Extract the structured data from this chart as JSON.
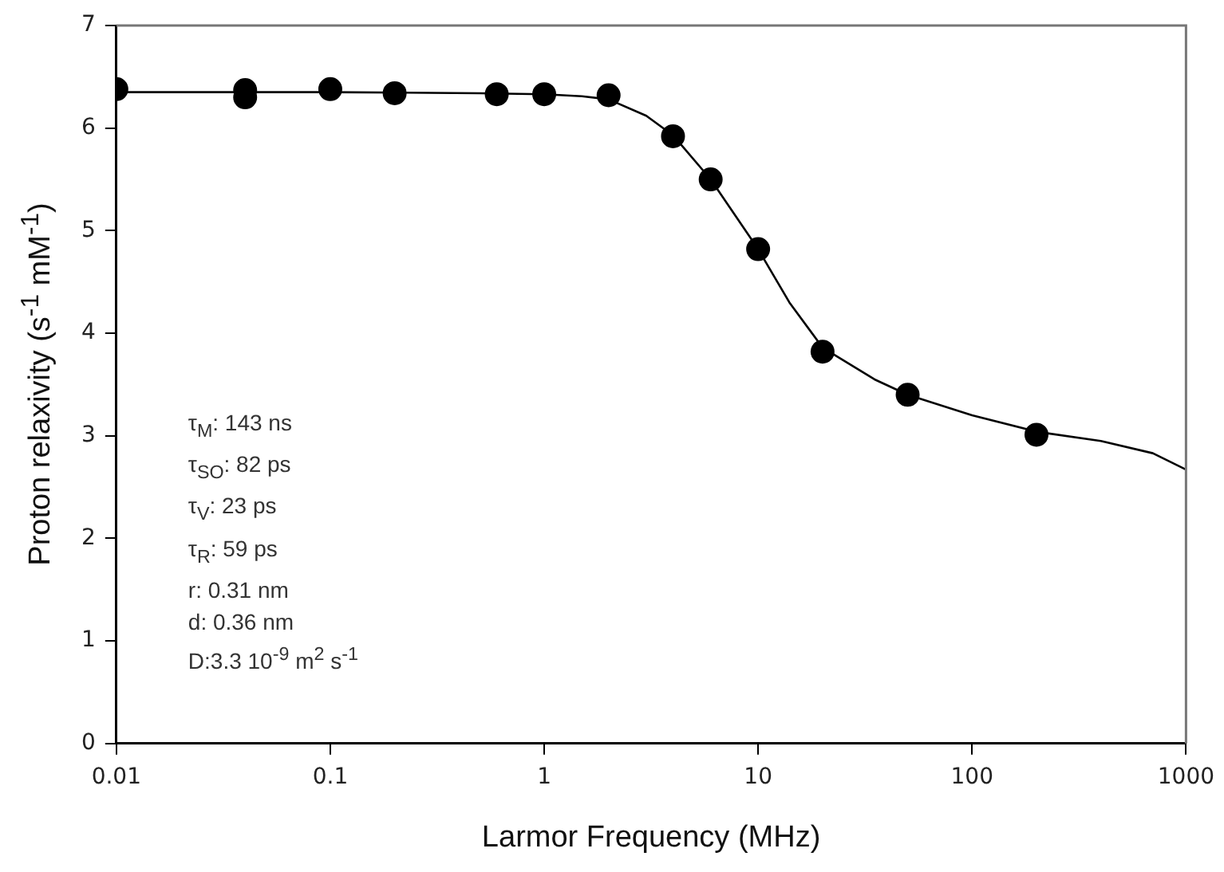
{
  "chart_data": {
    "type": "scatter",
    "xlabel": "Larmor Frequency (MHz)",
    "ylabel": "Proton relaxivity (s$^{-1}$ mM$^{-1}$)",
    "log": "x",
    "grid": false,
    "legend": false,
    "marker": "circle",
    "xlim": [
      0.01,
      1000
    ],
    "xticks": [
      0.01,
      0.1,
      1,
      10,
      100,
      1000
    ],
    "ylim": [
      0,
      7
    ],
    "yticks": [
      0,
      1,
      2,
      3,
      4,
      5,
      6,
      7
    ],
    "x": [
      0.01,
      0.04,
      0.04,
      0.1,
      0.2,
      0.6,
      1,
      2,
      4,
      6,
      10,
      20,
      50,
      200
    ],
    "series": [
      {
        "color": "#000000",
        "values": [
          6.38,
          6.37,
          6.3,
          6.38,
          6.34,
          6.33,
          6.33,
          6.32,
          5.92,
          5.5,
          4.82,
          3.82,
          3.4,
          3.01
        ]
      },
      {
        "type": "line",
        "color": "#000000",
        "marker": "none",
        "x": [
          0.01,
          0.1,
          0.5,
          1,
          1.5,
          2,
          3,
          4,
          6,
          10,
          14,
          20,
          35,
          50,
          100,
          200,
          400,
          700,
          1000
        ],
        "values": [
          6.35,
          6.35,
          6.34,
          6.33,
          6.31,
          6.28,
          6.12,
          5.93,
          5.5,
          4.82,
          4.3,
          3.86,
          3.55,
          3.4,
          3.2,
          3.04,
          2.95,
          2.83,
          2.67
        ]
      }
    ],
    "annotations": [
      "τ$_{M}$: 143 ns",
      "τ$_{SO}$: 82 ps",
      "τ$_{V}$: 23 ps",
      "τ$_{R}$: 59 ps",
      "r: 0.31 nm",
      "d: 0.36 nm",
      "D:3.3 10$^{-9}$ m$^{2}$ s$^{-1}$"
    ]
  }
}
